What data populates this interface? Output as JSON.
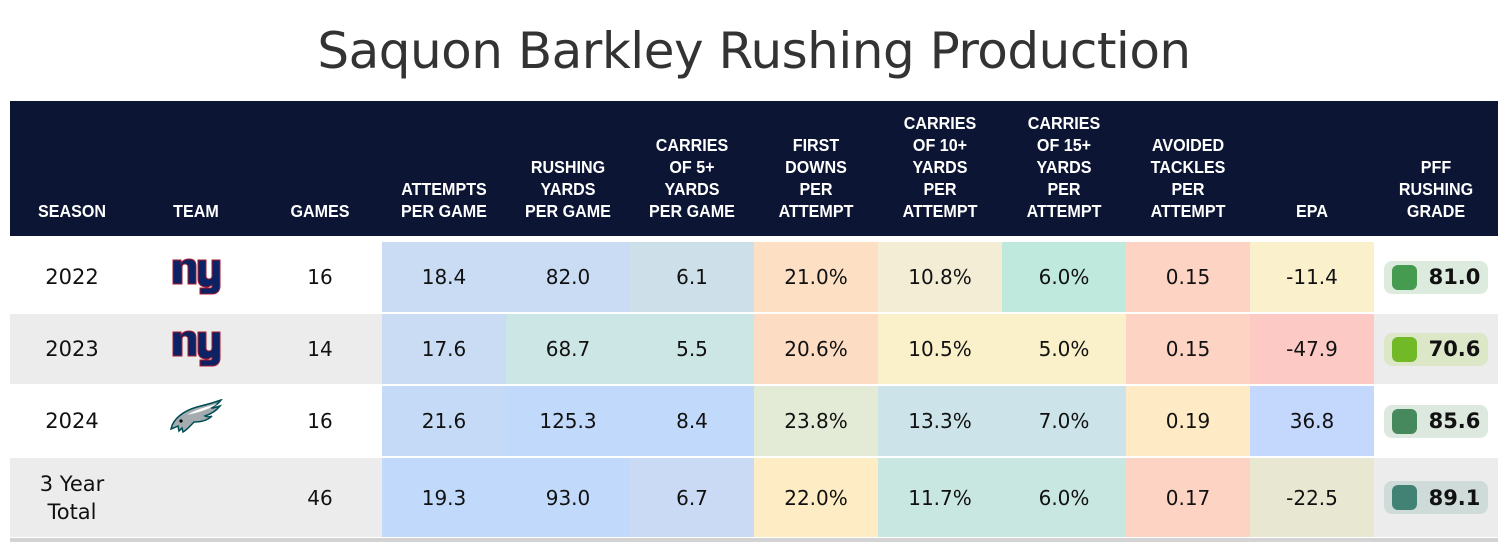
{
  "title": "Saquon Barkley Rushing Production",
  "columns": [
    {
      "key": "season",
      "label": [
        "SEASON"
      ]
    },
    {
      "key": "team",
      "label": [
        "TEAM"
      ]
    },
    {
      "key": "games",
      "label": [
        "GAMES"
      ]
    },
    {
      "key": "att_pg",
      "label": [
        "ATTEMPTS",
        "PER GAME"
      ]
    },
    {
      "key": "yds_pg",
      "label": [
        "RUSHING",
        "YARDS",
        "PER GAME"
      ]
    },
    {
      "key": "c5_pg",
      "label": [
        "CARRIES",
        "OF 5+",
        "YARDS",
        "PER GAME"
      ]
    },
    {
      "key": "fd_pa",
      "label": [
        "FIRST",
        "DOWNS",
        "PER",
        "ATTEMPT"
      ]
    },
    {
      "key": "c10_pa",
      "label": [
        "CARRIES",
        "OF 10+",
        "YARDS",
        "PER",
        "ATTEMPT"
      ]
    },
    {
      "key": "c15_pa",
      "label": [
        "CARRIES",
        "OF 15+",
        "YARDS",
        "PER",
        "ATTEMPT"
      ]
    },
    {
      "key": "at_pa",
      "label": [
        "AVOIDED",
        "TACKLES",
        "PER",
        "ATTEMPT"
      ]
    },
    {
      "key": "epa",
      "label": [
        "EPA"
      ]
    },
    {
      "key": "grade",
      "label": [
        "PFF",
        "RUSHING",
        "GRADE"
      ]
    }
  ],
  "rows": [
    {
      "season": "2022",
      "team": "NY Giants",
      "team_logo": "giants-logo",
      "games": "16",
      "values": [
        "18.4",
        "82.0",
        "6.1",
        "21.0%",
        "10.8%",
        "6.0%",
        "0.15",
        "-11.4"
      ],
      "colors": [
        "#c9dcf3",
        "#c9dcf3",
        "#cde0ea",
        "#fde0c4",
        "#f3edd6",
        "#bfe9dd",
        "#fdd3c4",
        "#faf1cc"
      ],
      "grade": "81.0",
      "grade_color": "#459b4f",
      "grade_bg": "#dcebdd"
    },
    {
      "season": "2023",
      "team": "NY Giants",
      "team_logo": "giants-logo",
      "games": "14",
      "values": [
        "17.6",
        "68.7",
        "5.5",
        "20.6%",
        "10.5%",
        "5.0%",
        "0.15",
        "-47.9"
      ],
      "colors": [
        "#c9dcf3",
        "#cce6e6",
        "#cce6e6",
        "#fddcc4",
        "#faf0ca",
        "#faf0ca",
        "#fdd3c4",
        "#fdc9c4"
      ],
      "grade": "70.6",
      "grade_color": "#71b927",
      "grade_bg": "#dce7c8"
    },
    {
      "season": "2024",
      "team": "Philadelphia Eagles",
      "team_logo": "eagles-logo",
      "games": "16",
      "values": [
        "21.6",
        "125.3",
        "8.4",
        "23.8%",
        "13.3%",
        "7.0%",
        "0.19",
        "36.8"
      ],
      "colors": [
        "#c4daf6",
        "#c1d9fb",
        "#c1d9fb",
        "#e3ead6",
        "#cce4e9",
        "#cce4e9",
        "#feeac4",
        "#c4d7fc"
      ],
      "grade": "85.6",
      "grade_color": "#45895d",
      "grade_bg": "#dde8df"
    },
    {
      "season": "3 Year Total",
      "team": "",
      "team_logo": "",
      "games": "46",
      "values": [
        "19.3",
        "93.0",
        "6.7",
        "22.0%",
        "11.7%",
        "6.0%",
        "0.17",
        "-22.5"
      ],
      "colors": [
        "#c1d9fb",
        "#c1d9fb",
        "#cad9f4",
        "#feecc4",
        "#c9e7e1",
        "#c9e7e1",
        "#fdd3c4",
        "#e8e8d2"
      ],
      "grade": "89.1",
      "grade_color": "#428274",
      "grade_bg": "#cfdbd9"
    }
  ],
  "chart_data": {
    "type": "table",
    "title": "Saquon Barkley Rushing Production",
    "headers": [
      "SEASON",
      "TEAM",
      "GAMES",
      "ATTEMPTS PER GAME",
      "RUSHING YARDS PER GAME",
      "CARRIES OF 5+ YARDS PER GAME",
      "FIRST DOWNS PER ATTEMPT",
      "CARRIES OF 10+ YARDS PER ATTEMPT",
      "CARRIES OF 15+ YARDS PER ATTEMPT",
      "AVOIDED TACKLES PER ATTEMPT",
      "EPA",
      "PFF RUSHING GRADE"
    ],
    "rows": [
      [
        "2022",
        "NYG",
        16,
        18.4,
        82.0,
        6.1,
        "21.0%",
        "10.8%",
        "6.0%",
        0.15,
        -11.4,
        81.0
      ],
      [
        "2023",
        "NYG",
        14,
        17.6,
        68.7,
        5.5,
        "20.6%",
        "10.5%",
        "5.0%",
        0.15,
        -47.9,
        70.6
      ],
      [
        "2024",
        "PHI",
        16,
        21.6,
        125.3,
        8.4,
        "23.8%",
        "13.3%",
        "7.0%",
        0.19,
        36.8,
        85.6
      ],
      [
        "3 Year Total",
        "",
        46,
        19.3,
        93.0,
        6.7,
        "22.0%",
        "11.7%",
        "6.0%",
        0.17,
        -22.5,
        89.1
      ]
    ]
  }
}
